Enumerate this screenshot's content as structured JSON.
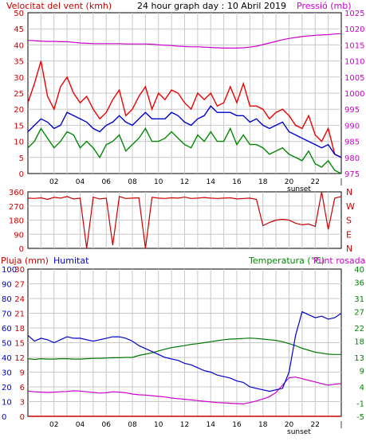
{
  "header": {
    "wind_title": "Velocitat del vent (kmh)",
    "date_title": "24 hour graph day : 10 Abril 2019",
    "pressure_title": "Pressió (mb)",
    "rain_title": "Pluja (mm)",
    "humidity_title": "Humitat",
    "temp_title": "Temperatura (°C)",
    "dew_title": "Punt rosada"
  },
  "colors": {
    "wind": "#ee0000",
    "gust_avg": "#0000cc",
    "wind_min": "#008800",
    "pressure": "#cc00cc",
    "direction": "#cc0000",
    "humidity": "#0000cc",
    "temperature": "#007700",
    "dewpoint": "#cc00cc",
    "rain": "#cc0000",
    "grid": "#c8c8c8",
    "axis_left": "#cc0000",
    "axis_humidity": "#0000cc",
    "axis_temp": "#008800"
  },
  "x_axis": {
    "ticks": [
      "02",
      "04",
      "06",
      "08",
      "10",
      "12",
      "14",
      "16",
      "18",
      "20",
      "22",
      "|"
    ],
    "sunset_label": "sunset"
  },
  "chart_data": [
    {
      "type": "line",
      "panel": "wind",
      "x_hours": [
        0,
        0.5,
        1,
        1.5,
        2,
        2.5,
        3,
        3.5,
        4,
        4.5,
        5,
        5.5,
        6,
        6.5,
        7,
        7.5,
        8,
        8.5,
        9,
        9.5,
        10,
        10.5,
        11,
        11.5,
        12,
        12.5,
        13,
        13.5,
        14,
        14.5,
        15,
        15.5,
        16,
        16.5,
        17,
        17.5,
        18,
        18.5,
        19,
        19.5,
        20,
        20.5,
        21,
        21.5,
        22,
        22.5,
        23,
        23.5,
        24
      ],
      "yleft_ticks": [
        0,
        5,
        10,
        15,
        20,
        25,
        30,
        35,
        40,
        45,
        50
      ],
      "yleft_lim": [
        0,
        50
      ],
      "yright_ticks": [
        975,
        980,
        985,
        990,
        995,
        1000,
        1005,
        1010,
        1015,
        1020,
        1025
      ],
      "yright_lim": [
        975,
        1025
      ],
      "series": [
        {
          "key": "wind_speed",
          "values": [
            22,
            28,
            35,
            24,
            20,
            27,
            30,
            25,
            22,
            24,
            20,
            17,
            19,
            23,
            26,
            18,
            20,
            24,
            27,
            20,
            25,
            23,
            26,
            25,
            22,
            20,
            25,
            23,
            25,
            21,
            22,
            27,
            22,
            28,
            21,
            21,
            20,
            17,
            19,
            20,
            18,
            15,
            14,
            18,
            12,
            10,
            14,
            6,
            5
          ]
        },
        {
          "key": "gust_average",
          "values": [
            13,
            15,
            17,
            16,
            14,
            15,
            19,
            18,
            17,
            16,
            14,
            13,
            15,
            16,
            18,
            16,
            15,
            17,
            19,
            17,
            17,
            17,
            19,
            18,
            16,
            15,
            17,
            18,
            21,
            19,
            19,
            19,
            18,
            18,
            16,
            17,
            15,
            14,
            15,
            16,
            13,
            12,
            11,
            10,
            9,
            8,
            9,
            6,
            5
          ]
        },
        {
          "key": "wind_minimum",
          "values": [
            8,
            10,
            14,
            11,
            8,
            10,
            13,
            12,
            8,
            10,
            8,
            5,
            9,
            10,
            12,
            7,
            9,
            11,
            14,
            10,
            10,
            11,
            13,
            11,
            9,
            8,
            12,
            10,
            13,
            10,
            10,
            14,
            9,
            12,
            9,
            9,
            8,
            6,
            7,
            8,
            6,
            5,
            4,
            7,
            3,
            2,
            4,
            1,
            0
          ]
        },
        {
          "key": "pressure",
          "values": [
            1016.4,
            1016.3,
            1016.2,
            1016.1,
            1016.1,
            1016,
            1016,
            1015.8,
            1015.6,
            1015.5,
            1015.4,
            1015.4,
            1015.4,
            1015.4,
            1015.4,
            1015.3,
            1015.3,
            1015.3,
            1015.3,
            1015.2,
            1015,
            1014.9,
            1014.8,
            1014.6,
            1014.5,
            1014.4,
            1014.4,
            1014.3,
            1014.2,
            1014.1,
            1014,
            1014,
            1014,
            1014.1,
            1014.3,
            1014.6,
            1015.1,
            1015.6,
            1016.1,
            1016.6,
            1017,
            1017.3,
            1017.6,
            1017.8,
            1018,
            1018.1,
            1018.2,
            1018.4,
            1018.5
          ]
        }
      ]
    },
    {
      "type": "line",
      "panel": "direction",
      "x_hours": [
        0,
        0.5,
        1,
        1.5,
        2,
        2.5,
        3,
        3.5,
        4,
        4.5,
        5,
        5.5,
        6,
        6.5,
        7,
        7.5,
        8,
        8.5,
        9,
        9.5,
        10,
        10.5,
        11,
        11.5,
        12,
        12.5,
        13,
        13.5,
        14,
        14.5,
        15,
        15.5,
        16,
        16.5,
        17,
        17.5,
        18,
        18.5,
        19,
        19.5,
        20,
        20.5,
        21,
        21.5,
        22,
        22.5,
        23,
        23.5,
        24
      ],
      "y_ticks": [
        0,
        90,
        180,
        270,
        360
      ],
      "y_lim": [
        0,
        360
      ],
      "cardinal_labels": [
        "N",
        "W",
        "S",
        "E",
        "N"
      ],
      "series": [
        {
          "key": "wind_direction",
          "values": [
            320,
            318,
            322,
            312,
            325,
            320,
            330,
            315,
            320,
            0,
            326,
            315,
            320,
            20,
            330,
            318,
            320,
            322,
            0,
            325,
            320,
            318,
            322,
            320,
            326,
            318,
            320,
            324,
            320,
            318,
            320,
            322,
            315,
            318,
            320,
            312,
            145,
            165,
            180,
            185,
            180,
            160,
            150,
            155,
            140,
            360,
            120,
            320,
            330
          ]
        }
      ]
    },
    {
      "type": "line",
      "panel": "humidity_temperature",
      "x_hours": [
        0,
        0.5,
        1,
        1.5,
        2,
        2.5,
        3,
        3.5,
        4,
        4.5,
        5,
        5.5,
        6,
        6.5,
        7,
        7.5,
        8,
        8.5,
        9,
        9.5,
        10,
        10.5,
        11,
        11.5,
        12,
        12.5,
        13,
        13.5,
        14,
        14.5,
        15,
        15.5,
        16,
        16.5,
        17,
        17.5,
        18,
        18.5,
        19,
        19.5,
        20,
        20.5,
        21,
        21.5,
        22,
        22.5,
        23,
        23.5,
        24
      ],
      "yleft_rain_ticks": [
        0,
        3,
        6,
        9,
        12,
        15,
        18,
        21,
        24,
        27,
        30
      ],
      "yleft_humidity_ticks": [
        0,
        10,
        20,
        30,
        40,
        50,
        60,
        70,
        80,
        90,
        100
      ],
      "yright_temp_ticks": [
        -5,
        -1,
        4,
        9,
        13,
        18,
        22,
        27,
        31,
        36,
        40
      ],
      "yright_lim": [
        -5,
        40
      ],
      "series": [
        {
          "key": "humidity",
          "values": [
            55,
            51,
            53,
            52,
            50,
            52,
            54,
            53,
            53,
            52,
            51,
            52,
            53,
            54,
            54,
            53,
            51,
            48,
            46,
            44,
            42,
            40,
            39,
            38,
            36,
            35,
            33,
            31,
            30,
            28,
            27,
            26,
            24,
            23,
            20,
            19,
            18,
            17,
            18,
            19,
            30,
            55,
            71,
            69,
            67,
            68,
            66,
            67,
            70
          ]
        },
        {
          "key": "temperature",
          "values": [
            12.6,
            12.4,
            12.6,
            12.5,
            12.5,
            12.6,
            12.6,
            12.5,
            12.5,
            12.6,
            12.7,
            12.7,
            12.8,
            12.9,
            12.9,
            13,
            13,
            13.6,
            14,
            14.4,
            15,
            15.5,
            16,
            16.3,
            16.6,
            17,
            17.2,
            17.5,
            17.8,
            18.1,
            18.4,
            18.6,
            18.7,
            18.8,
            18.9,
            18.8,
            18.6,
            18.4,
            18.2,
            17.8,
            17.2,
            16.6,
            15.8,
            15.2,
            14.6,
            14.3,
            14,
            13.9,
            13.9
          ]
        },
        {
          "key": "dewpoint",
          "values": [
            2.7,
            2.5,
            2.4,
            2.3,
            2.4,
            2.5,
            2.6,
            2.8,
            2.7,
            2.5,
            2.3,
            2.1,
            2.2,
            2.5,
            2.4,
            2.2,
            1.8,
            1.6,
            1.5,
            1.3,
            1.1,
            0.9,
            0.6,
            0.4,
            0.2,
            0,
            -0.2,
            -0.4,
            -0.6,
            -0.8,
            -0.9,
            -1,
            -1.1,
            -1.2,
            -0.8,
            -0.3,
            0.3,
            1,
            2.3,
            4.5,
            6.8,
            7,
            6.5,
            6,
            5.5,
            5,
            4.5,
            4.8,
            5
          ]
        },
        {
          "key": "rain",
          "values": [
            0,
            0,
            0,
            0,
            0,
            0,
            0,
            0,
            0,
            0,
            0,
            0,
            0,
            0,
            0,
            0,
            0,
            0,
            0,
            0,
            0,
            0,
            0,
            0,
            0,
            0,
            0,
            0,
            0,
            0,
            0,
            0,
            0,
            0,
            0,
            0,
            0,
            0,
            0,
            0,
            0,
            0,
            0,
            0,
            0,
            0,
            0,
            0,
            0
          ]
        }
      ]
    }
  ]
}
